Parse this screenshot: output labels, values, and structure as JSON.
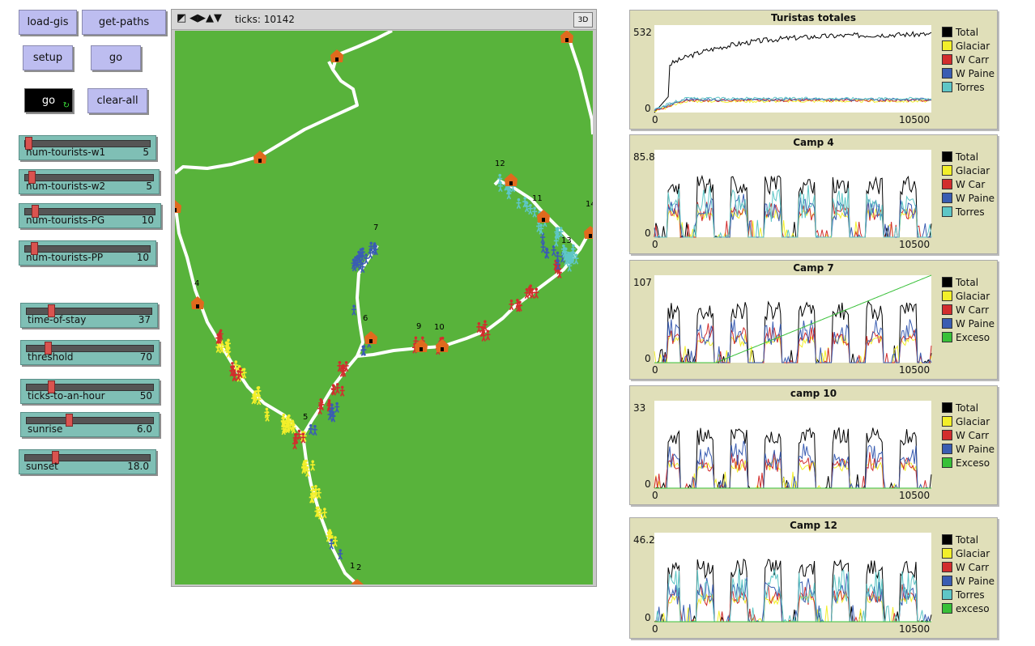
{
  "buttons": {
    "load_gis": "load-gis",
    "get_paths": "get-paths",
    "setup": "setup",
    "go": "go",
    "go_forever": "go",
    "clear_all": "clear-all"
  },
  "sliders": [
    {
      "label": "num-tourists-w1",
      "value": "5",
      "fraction": 0.02
    },
    {
      "label": "num-tourists-w2",
      "value": "5",
      "fraction": 0.05
    },
    {
      "label": "num-tourists-PG",
      "value": "10",
      "fraction": 0.07
    },
    {
      "label": "num-tourists-PP",
      "value": "10",
      "fraction": 0.07
    },
    {
      "label": "time-of-stay",
      "value": "37",
      "fraction": 0.2
    },
    {
      "label": "threshold",
      "value": "70",
      "fraction": 0.17
    },
    {
      "label": "ticks-to-an-hour",
      "value": "50",
      "fraction": 0.2
    },
    {
      "label": "sunrise",
      "value": "6.0",
      "fraction": 0.35
    },
    {
      "label": "sunset",
      "value": "18.0",
      "fraction": 0.25
    }
  ],
  "view": {
    "ticks_label": "ticks: 10142",
    "btn_3d": "3D",
    "camp_labels": [
      "1",
      "2",
      "4",
      "5",
      "6",
      "7",
      "9",
      "10",
      "11",
      "12",
      "13",
      "14"
    ],
    "colors": {
      "ground": "#58b33b",
      "trail": "#ffffff",
      "hut": "#e06a1e",
      "yellow": "#f2ef2a",
      "red": "#d22d2d",
      "blue": "#3a5db2",
      "cyan": "#5ec6c6"
    }
  },
  "plots": [
    {
      "title": "Turistas totales",
      "ymax": "532",
      "ymin": "0",
      "xmin": "0",
      "xmax": "10500",
      "legend": [
        {
          "name": "Total",
          "color": "#000000"
        },
        {
          "name": "Glaciar",
          "color": "#f2ef2a"
        },
        {
          "name": "W Carr",
          "color": "#d22d2d"
        },
        {
          "name": "W Paine",
          "color": "#3a5db2"
        },
        {
          "name": "Torres",
          "color": "#5ec6c6"
        }
      ]
    },
    {
      "title": "Camp 4",
      "ymax": "85.8",
      "ymin": "0",
      "xmin": "0",
      "xmax": "10500",
      "legend": [
        {
          "name": "Total",
          "color": "#000000"
        },
        {
          "name": "Glaciar",
          "color": "#f2ef2a"
        },
        {
          "name": "W Car",
          "color": "#d22d2d"
        },
        {
          "name": "W Paine",
          "color": "#3a5db2"
        },
        {
          "name": "Torres",
          "color": "#5ec6c6"
        }
      ]
    },
    {
      "title": "Camp 7",
      "ymax": "107",
      "ymin": "0",
      "xmin": "0",
      "xmax": "10500",
      "legend": [
        {
          "name": "Total",
          "color": "#000000"
        },
        {
          "name": "Glaciar",
          "color": "#f2ef2a"
        },
        {
          "name": "W Carr",
          "color": "#d22d2d"
        },
        {
          "name": "W Paine",
          "color": "#3a5db2"
        },
        {
          "name": "Exceso",
          "color": "#38c038"
        }
      ]
    },
    {
      "title": "camp 10",
      "ymax": "33",
      "ymin": "0",
      "xmin": "0",
      "xmax": "10500",
      "legend": [
        {
          "name": "Total",
          "color": "#000000"
        },
        {
          "name": "Glaciar",
          "color": "#f2ef2a"
        },
        {
          "name": "W Carr",
          "color": "#d22d2d"
        },
        {
          "name": "W Paine",
          "color": "#3a5db2"
        },
        {
          "name": "Exceso",
          "color": "#38c038"
        }
      ]
    },
    {
      "title": "Camp 12",
      "ymax": "46.2",
      "ymin": "0",
      "xmin": "0",
      "xmax": "10500",
      "legend": [
        {
          "name": "Total",
          "color": "#000000"
        },
        {
          "name": "Glaciar",
          "color": "#f2ef2a"
        },
        {
          "name": "W Carr",
          "color": "#d22d2d"
        },
        {
          "name": "W Paine",
          "color": "#3a5db2"
        },
        {
          "name": "Torres",
          "color": "#5ec6c6"
        },
        {
          "name": "exceso",
          "color": "#38c038"
        }
      ]
    }
  ]
}
